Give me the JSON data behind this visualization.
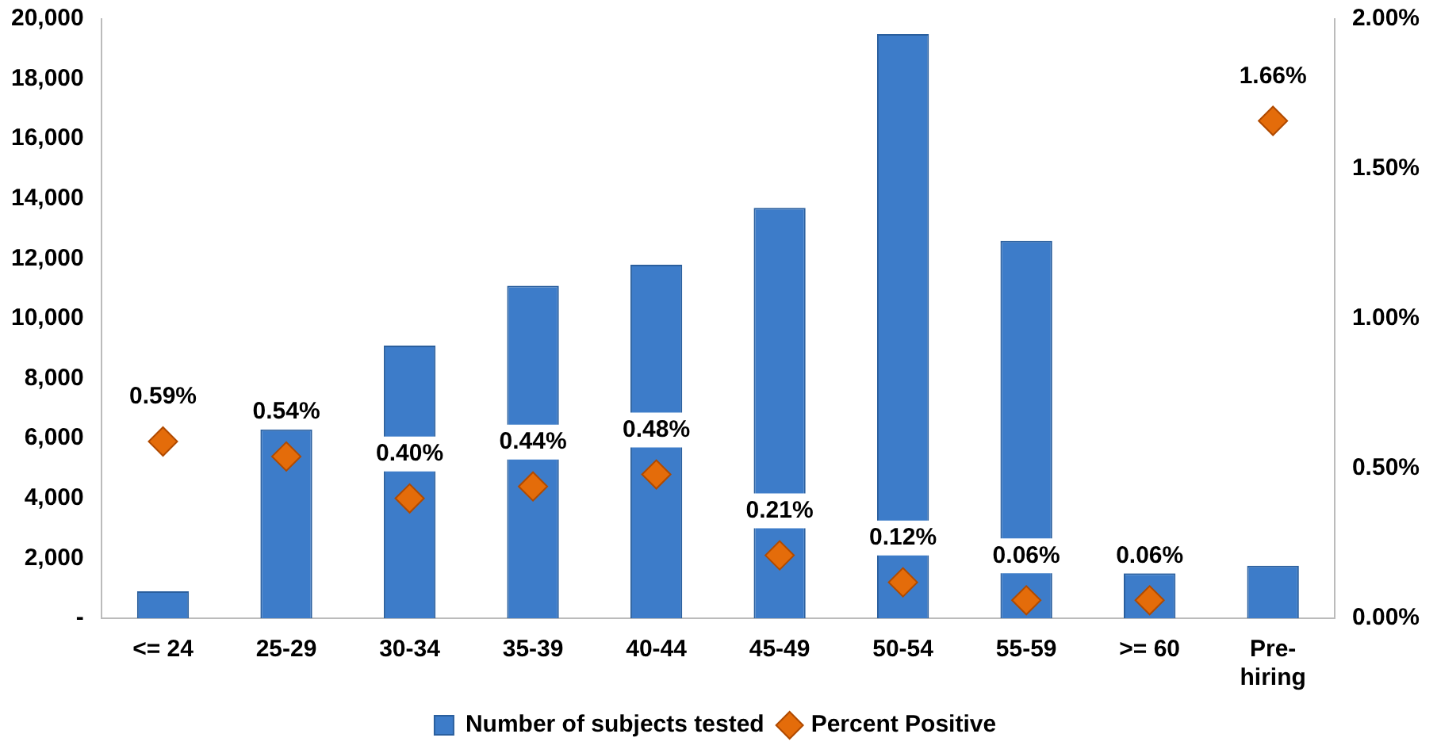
{
  "chart_data": {
    "type": "bar",
    "categories": [
      "<= 24",
      "25-29",
      "30-34",
      "35-39",
      "40-44",
      "45-49",
      "50-54",
      "55-59",
      ">= 60",
      "Pre-hiring"
    ],
    "series": [
      {
        "name": "Number of subjects tested",
        "type": "bar",
        "color": "#3d7cc9",
        "values": [
          900,
          6300,
          9100,
          11100,
          11800,
          13700,
          19500,
          12600,
          1500,
          1750
        ]
      },
      {
        "name": "Percent Positive",
        "type": "scatter",
        "axis": "y2",
        "marker": "diamond",
        "color": "#e46c0a",
        "x": [
          "<= 24",
          "25-29",
          "30-34",
          "35-39",
          "40-44",
          "45-49",
          "50-54",
          "55-59",
          ">= 60",
          "Pre-hiring"
        ],
        "values": [
          0.59,
          0.54,
          0.4,
          0.44,
          0.48,
          0.21,
          0.12,
          0.06,
          0.06,
          1.66
        ],
        "value_labels": [
          "0.59%",
          "0.54%",
          "0.40%",
          "0.44%",
          "0.48%",
          "0.21%",
          "0.12%",
          "0.06%",
          "0.06%",
          "1.66%"
        ]
      }
    ],
    "ylim": [
      0,
      20000
    ],
    "yticks": [
      {
        "value": 0,
        "label": "-"
      },
      {
        "value": 2000,
        "label": "2,000"
      },
      {
        "value": 4000,
        "label": "4,000"
      },
      {
        "value": 6000,
        "label": "6,000"
      },
      {
        "value": 8000,
        "label": "8,000"
      },
      {
        "value": 10000,
        "label": "10,000"
      },
      {
        "value": 12000,
        "label": "12,000"
      },
      {
        "value": 14000,
        "label": "14,000"
      },
      {
        "value": 16000,
        "label": "16,000"
      },
      {
        "value": 18000,
        "label": "18,000"
      },
      {
        "value": 20000,
        "label": "20,000"
      }
    ],
    "y2lim": [
      0,
      2
    ],
    "y2ticks": [
      {
        "value": 0,
        "label": "0.00%"
      },
      {
        "value": 0.5,
        "label": "0.50%"
      },
      {
        "value": 1,
        "label": "1.00%"
      },
      {
        "value": 1.5,
        "label": "1.50%"
      },
      {
        "value": 2,
        "label": "2.00%"
      }
    ],
    "grid": false,
    "legend": "bottom"
  }
}
